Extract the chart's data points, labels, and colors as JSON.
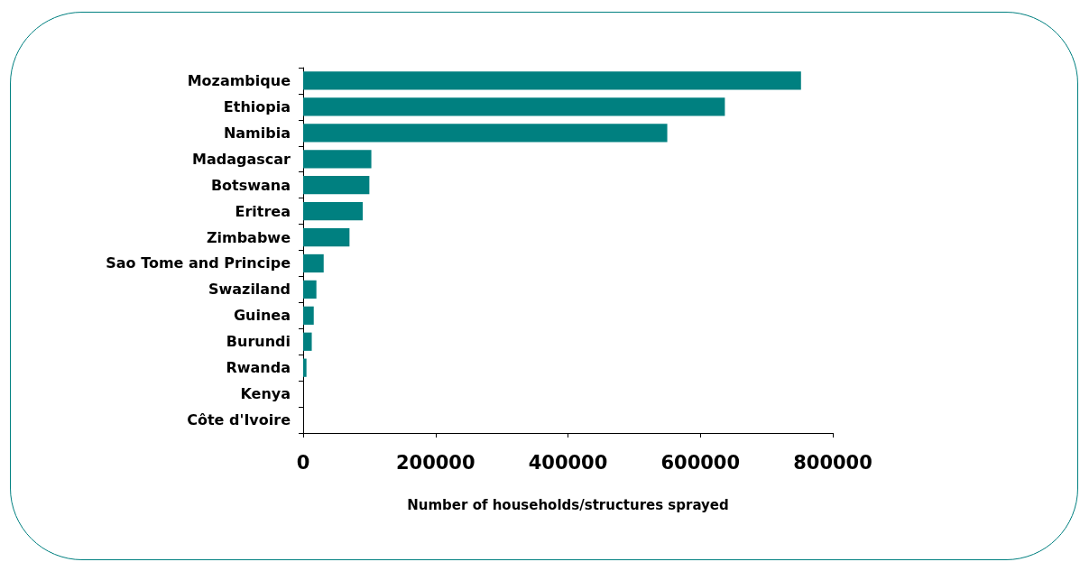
{
  "chart_data": {
    "type": "bar",
    "orientation": "horizontal",
    "xlabel": "Number of households/structures sprayed",
    "categories": [
      "Mozambique",
      "Ethiopia",
      "Namibia",
      "Madagascar",
      "Botswana",
      "Eritrea",
      "Zimbabwe",
      "Sao Tome and Principe",
      "Swaziland",
      "Guinea",
      "Burundi",
      "Rwanda",
      "Kenya",
      "Côte d'Ivoire"
    ],
    "values": [
      752000,
      637000,
      550000,
      103000,
      100000,
      90000,
      70000,
      31000,
      20000,
      16000,
      13000,
      5000,
      0,
      0
    ],
    "color": "#008080",
    "xlim": [
      0,
      800000
    ],
    "xticks": [
      0,
      200000,
      400000,
      600000,
      800000
    ],
    "grid": false
  }
}
